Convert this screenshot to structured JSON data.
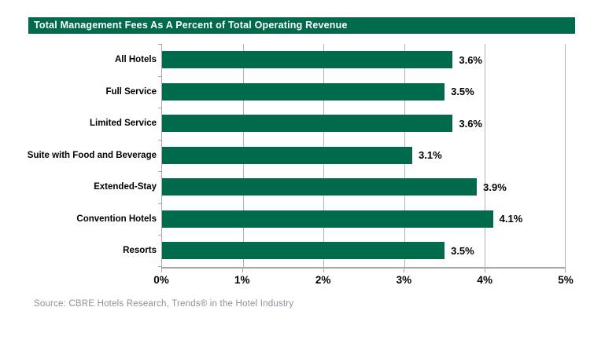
{
  "chart_data": {
    "type": "bar",
    "orientation": "horizontal",
    "title": "Total Management Fees As A Percent of Total Operating Revenue",
    "categories": [
      "All Hotels",
      "Full Service",
      "Limited Service",
      "Suite with Food and Beverage",
      "Extended-Stay",
      "Convention Hotels",
      "Resorts"
    ],
    "values": [
      3.6,
      3.5,
      3.6,
      3.1,
      3.9,
      4.1,
      3.5
    ],
    "value_labels": [
      "3.6%",
      "3.5%",
      "3.6%",
      "3.1%",
      "3.9%",
      "4.1%",
      "3.5%"
    ],
    "x_tick_labels": [
      "0%",
      "1%",
      "2%",
      "3%",
      "4%",
      "5%"
    ],
    "xlim": [
      0,
      5
    ],
    "xlabel": "",
    "ylabel": "",
    "grid": "vertical gridlines at each 1% tick",
    "legend": "none",
    "bar_color": "#006A4D"
  },
  "source_note": "Source: CBRE Hotels Research, Trends® in the Hotel Industry",
  "colors": {
    "header_bg": "#006A4D",
    "header_text": "#FFFFFF",
    "bar": "#006A4D",
    "gridline": "#B3B3B3",
    "axis": "#A6A6A6",
    "label_text": "#000000",
    "source_text": "#8A9099"
  }
}
